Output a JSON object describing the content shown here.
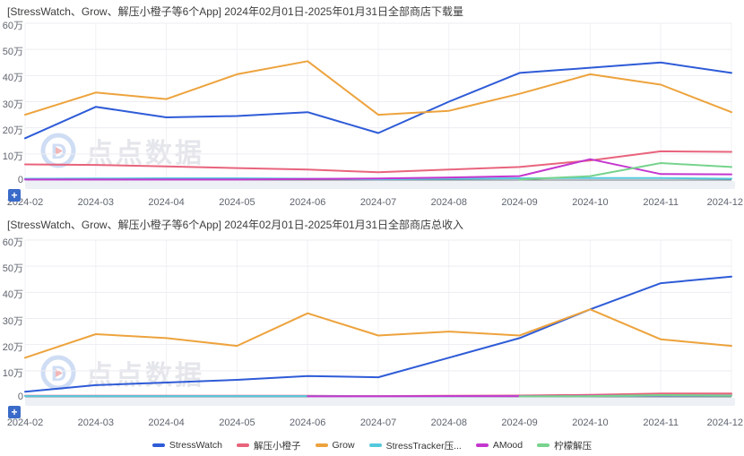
{
  "page": {
    "background": "#ffffff"
  },
  "watermark": {
    "text": "点点数据"
  },
  "controls": {
    "zoom_button_label": "+"
  },
  "colors": {
    "grid_line": "#ededf2",
    "grid_line_vertical": "#f1f1f4",
    "axis_line": "#6e7079",
    "tick_label": "#5f646e",
    "title_text": "#3d3d3d",
    "plus_button": "#3a6bc9",
    "slider_band": "#edf0f5"
  },
  "legend": {
    "items": [
      {
        "label": "StressWatch",
        "color": "#2e5bd7"
      },
      {
        "label": "解压小橙子",
        "color": "#e8647c"
      },
      {
        "label": "Grow",
        "color": "#eda33d"
      },
      {
        "label": "StressTracker压...",
        "color": "#54c9de"
      },
      {
        "label": "AMood",
        "color": "#c437cf"
      },
      {
        "label": "柠檬解压",
        "color": "#77d38d"
      }
    ]
  },
  "chart_data": [
    {
      "type": "line",
      "title": "[StressWatch、Grow、解压小橙子等6个App] 2024年02月01日-2025年01月31日全部商店下载量",
      "unit": "万",
      "x_labels": [
        "2024-02",
        "2024-03",
        "2024-04",
        "2024-05",
        "2024-06",
        "2024-07",
        "2024-08",
        "2024-09",
        "2024-10",
        "2024-11",
        "2024-12"
      ],
      "y_tick_labels": [
        "60万",
        "50万",
        "40万",
        "30万",
        "20万",
        "10万",
        "0"
      ],
      "ylim_wan": [
        0,
        60
      ],
      "grid": true,
      "series": [
        {
          "name": "StressWatch",
          "color": "#2e5bd7",
          "values_wan": [
            16,
            28,
            24,
            24.5,
            26,
            18,
            30,
            41,
            43,
            45,
            41
          ]
        },
        {
          "name": "Grow",
          "color": "#eda33d",
          "values_wan": [
            25,
            33.5,
            31,
            40.5,
            45.5,
            25,
            26.5,
            33,
            40.5,
            36.5,
            26
          ]
        },
        {
          "name": "解压小橙子",
          "color": "#e8647c",
          "values_wan": [
            6,
            5.8,
            5.2,
            4.6,
            4,
            3,
            4,
            5,
            7.5,
            11,
            10.8
          ]
        },
        {
          "name": "StressTracker压...",
          "color": "#54c9de",
          "values_wan": [
            0.5,
            0.6,
            0.7,
            0.7,
            0.5,
            0.3,
            0.5,
            0.7,
            0.8,
            0.8,
            0.5
          ]
        },
        {
          "name": "AMood",
          "color": "#c437cf",
          "values_wan": [
            0.2,
            0.2,
            0.2,
            0.2,
            0.4,
            0.6,
            1,
            1.5,
            8,
            2.3,
            2.2
          ]
        },
        {
          "name": "柠檬解压",
          "color": "#77d38d",
          "values_wan": [
            null,
            null,
            null,
            null,
            null,
            null,
            null,
            0.2,
            1.5,
            6.5,
            5
          ]
        }
      ]
    },
    {
      "type": "line",
      "title": "[StressWatch、Grow、解压小橙子等6个App] 2024年02月01日-2025年01月31日全部商店总收入",
      "unit": "万",
      "x_labels": [
        "2024-02",
        "2024-03",
        "2024-04",
        "2024-05",
        "2024-06",
        "2024-07",
        "2024-08",
        "2024-09",
        "2024-10",
        "2024-11",
        "2024-12"
      ],
      "y_tick_labels": [
        "60万",
        "50万",
        "40万",
        "30万",
        "20万",
        "10万",
        "0"
      ],
      "ylim_wan": [
        0,
        60
      ],
      "grid": true,
      "series": [
        {
          "name": "StressWatch",
          "color": "#2e5bd7",
          "values_wan": [
            2,
            4.5,
            5.5,
            6.5,
            8,
            7.5,
            15,
            22.5,
            33.5,
            43.5,
            46
          ]
        },
        {
          "name": "Grow",
          "color": "#eda33d",
          "values_wan": [
            15,
            24,
            22.5,
            19.5,
            32,
            23.5,
            25,
            23.5,
            33.5,
            22,
            19.5
          ]
        },
        {
          "name": "解压小橙子",
          "color": "#e8647c",
          "values_wan": [
            0.4,
            0.4,
            0.4,
            0.4,
            0.4,
            0.3,
            0.4,
            0.5,
            0.8,
            1.3,
            1.3
          ]
        },
        {
          "name": "StressTracker压...",
          "color": "#54c9de",
          "values_wan": [
            0.3,
            0.3,
            0.3,
            0.3,
            0.3,
            0.2,
            0.2,
            0.3,
            0.3,
            0.4,
            0.4
          ]
        },
        {
          "name": "AMood",
          "color": "#c437cf",
          "values_wan": [
            null,
            null,
            null,
            null,
            0.2,
            0.2,
            0.3,
            0.3,
            0.4,
            0.6,
            0.6
          ]
        },
        {
          "name": "柠檬解压",
          "color": "#77d38d",
          "values_wan": [
            null,
            null,
            null,
            null,
            null,
            null,
            null,
            0.2,
            0.3,
            0.7,
            0.5
          ]
        }
      ]
    }
  ]
}
